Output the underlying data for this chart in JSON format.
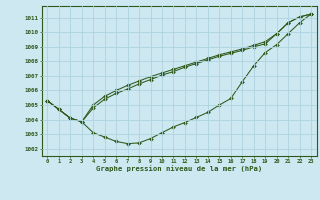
{
  "xlabel": "Graphe pression niveau de la mer (hPa)",
  "bg_color": "#cde8f0",
  "grid_color": "#b0d8e8",
  "line_color": "#2d5a1b",
  "ylim": [
    1001.5,
    1011.8
  ],
  "yticks": [
    1002,
    1003,
    1004,
    1005,
    1006,
    1007,
    1008,
    1009,
    1010,
    1011
  ],
  "xlim": [
    -0.5,
    23.5
  ],
  "xticks": [
    0,
    1,
    2,
    3,
    4,
    5,
    6,
    7,
    8,
    9,
    10,
    11,
    12,
    13,
    14,
    15,
    16,
    17,
    18,
    19,
    20,
    21,
    22,
    23
  ],
  "line_low": [
    1005.3,
    1004.7,
    1004.1,
    1003.85,
    1003.1,
    1002.8,
    1002.5,
    1002.35,
    1002.4,
    1002.7,
    1003.1,
    1003.5,
    1003.8,
    1004.15,
    1004.5,
    1005.0,
    1005.45,
    1006.6,
    1007.7,
    1008.6,
    1009.15,
    1009.9,
    1010.65,
    1011.25
  ],
  "line_mid": [
    1005.3,
    1004.7,
    1004.1,
    1003.85,
    1004.8,
    1005.4,
    1005.8,
    1006.1,
    1006.45,
    1006.75,
    1007.05,
    1007.3,
    1007.6,
    1007.85,
    1008.1,
    1008.35,
    1008.55,
    1008.75,
    1009.0,
    1009.2,
    1009.9,
    1010.65,
    1011.05,
    1011.25
  ],
  "line_hi": [
    1005.3,
    1004.7,
    1004.1,
    1003.85,
    1005.0,
    1005.6,
    1006.0,
    1006.35,
    1006.65,
    1006.95,
    1007.2,
    1007.45,
    1007.7,
    1007.95,
    1008.2,
    1008.45,
    1008.65,
    1008.85,
    1009.1,
    1009.35,
    1009.9,
    1010.65,
    1011.05,
    1011.25
  ]
}
